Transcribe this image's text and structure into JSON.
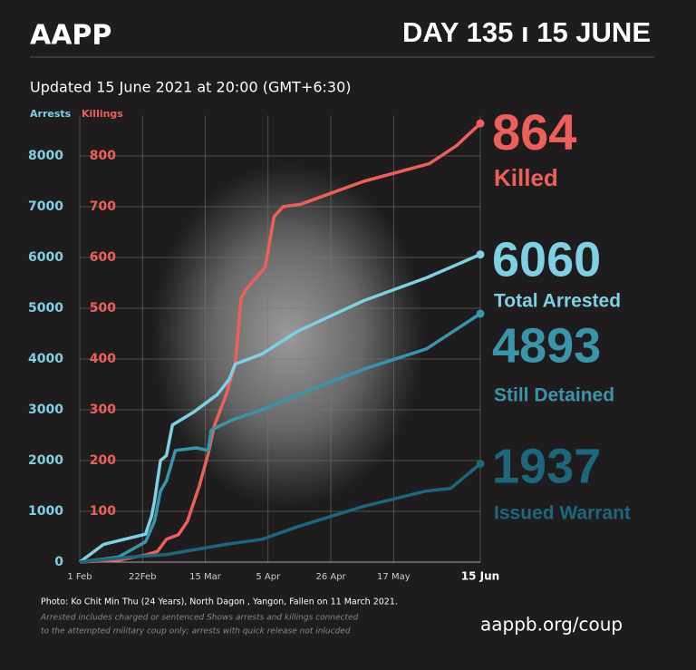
{
  "chart_data": {
    "type": "line",
    "logo": "AAPP",
    "title": "DAY 135 ı 15 JUNE",
    "subtitle": "Updated 15 June 2021 at 20:00 (GMT+6:30)",
    "ylabel": "Arrests",
    "y2label": "Killings",
    "caption": "Photo: Ko Chit Min Thu (24 Years), North Dagon , Yangon, Fallen on 11 March 2021.",
    "note": [
      "Arrested includes charged or sentenced Shows arrests and killings connected",
      "to the attempted military coup only; arrests with quick release not inlucded"
    ],
    "source": "aappb.org/coup",
    "xlim": [
      1,
      135
    ],
    "xticks": [
      {
        "value": 1,
        "label": "1 Feb"
      },
      {
        "value": 22,
        "label": "22Feb"
      },
      {
        "value": 43,
        "label": "15 Mar"
      },
      {
        "value": 64,
        "label": "5 Apr"
      },
      {
        "value": 85,
        "label": "26 Apr"
      },
      {
        "value": 106,
        "label": "17 May"
      },
      {
        "value": 135,
        "label": "15 Jun"
      }
    ],
    "ylim": [
      0,
      8800
    ],
    "yticks": [
      0,
      1000,
      2000,
      3000,
      4000,
      5000,
      6000,
      7000,
      8000
    ],
    "y2lim": [
      0,
      880
    ],
    "y2ticks": [
      100,
      200,
      300,
      400,
      500,
      600,
      700,
      800
    ],
    "grid": true,
    "series": [
      {
        "name": "Killed",
        "color": "#ec605b",
        "axis": "y2",
        "x": [
          1,
          14,
          23,
          27,
          30,
          34,
          37,
          41,
          44,
          46,
          50,
          53,
          55,
          57,
          63,
          66,
          69,
          75,
          96,
          118,
          127,
          135
        ],
        "values": [
          0,
          4,
          14,
          21,
          45,
          54,
          80,
          150,
          214,
          268,
          330,
          390,
          520,
          540,
          580,
          680,
          700,
          705,
          750,
          785,
          820,
          864
        ]
      },
      {
        "name": "Total Arrested",
        "color": "#7fd0e2",
        "x": [
          1,
          9,
          23,
          25,
          26,
          28,
          30,
          32,
          39,
          47,
          51,
          53,
          62,
          74,
          96,
          117,
          135
        ],
        "values": [
          0,
          350,
          550,
          900,
          1200,
          2000,
          2100,
          2700,
          2950,
          3300,
          3600,
          3900,
          4100,
          4550,
          5150,
          5600,
          6060
        ]
      },
      {
        "name": "Still Detained",
        "color": "#3b95aa",
        "x": [
          1,
          14,
          23,
          26,
          28,
          30,
          33,
          40,
          44,
          45,
          52,
          62,
          74,
          96,
          117,
          135
        ],
        "values": [
          0,
          100,
          400,
          800,
          1400,
          1600,
          2200,
          2250,
          2200,
          2600,
          2800,
          3000,
          3300,
          3800,
          4200,
          4893
        ]
      },
      {
        "name": "Issued Warrant",
        "color": "#1d667c",
        "x": [
          1,
          18,
          30,
          50,
          62,
          74,
          96,
          117,
          125,
          135
        ],
        "values": [
          0,
          100,
          150,
          350,
          450,
          700,
          1100,
          1400,
          1450,
          1937
        ]
      }
    ]
  }
}
